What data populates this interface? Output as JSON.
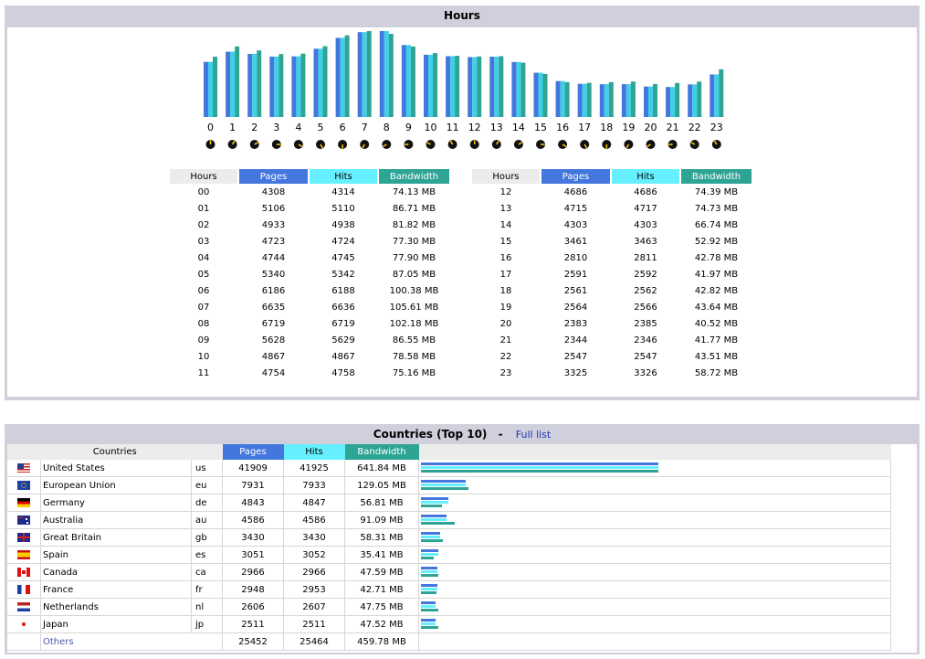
{
  "hours_panel": {
    "title": "Hours",
    "table_headers": {
      "hours": "Hours",
      "pages": "Pages",
      "hits": "Hits",
      "bandwidth": "Bandwidth"
    },
    "hours": [
      {
        "hour": "00",
        "label": "0",
        "pages": "4308",
        "hits": "4314",
        "bandwidth": "74.13 MB"
      },
      {
        "hour": "01",
        "label": "1",
        "pages": "5106",
        "hits": "5110",
        "bandwidth": "86.71 MB"
      },
      {
        "hour": "02",
        "label": "2",
        "pages": "4933",
        "hits": "4938",
        "bandwidth": "81.82 MB"
      },
      {
        "hour": "03",
        "label": "3",
        "pages": "4723",
        "hits": "4724",
        "bandwidth": "77.30 MB"
      },
      {
        "hour": "04",
        "label": "4",
        "pages": "4744",
        "hits": "4745",
        "bandwidth": "77.90 MB"
      },
      {
        "hour": "05",
        "label": "5",
        "pages": "5340",
        "hits": "5342",
        "bandwidth": "87.05 MB"
      },
      {
        "hour": "06",
        "label": "6",
        "pages": "6186",
        "hits": "6188",
        "bandwidth": "100.38 MB"
      },
      {
        "hour": "07",
        "label": "7",
        "pages": "6635",
        "hits": "6636",
        "bandwidth": "105.61 MB"
      },
      {
        "hour": "08",
        "label": "8",
        "pages": "6719",
        "hits": "6719",
        "bandwidth": "102.18 MB"
      },
      {
        "hour": "09",
        "label": "9",
        "pages": "5628",
        "hits": "5629",
        "bandwidth": "86.55 MB"
      },
      {
        "hour": "10",
        "label": "10",
        "pages": "4867",
        "hits": "4867",
        "bandwidth": "78.58 MB"
      },
      {
        "hour": "11",
        "label": "11",
        "pages": "4754",
        "hits": "4758",
        "bandwidth": "75.16 MB"
      },
      {
        "hour": "12",
        "label": "12",
        "pages": "4686",
        "hits": "4686",
        "bandwidth": "74.39 MB"
      },
      {
        "hour": "13",
        "label": "13",
        "pages": "4715",
        "hits": "4717",
        "bandwidth": "74.73 MB"
      },
      {
        "hour": "14",
        "label": "14",
        "pages": "4303",
        "hits": "4303",
        "bandwidth": "66.74 MB"
      },
      {
        "hour": "15",
        "label": "15",
        "pages": "3461",
        "hits": "3463",
        "bandwidth": "52.92 MB"
      },
      {
        "hour": "16",
        "label": "16",
        "pages": "2810",
        "hits": "2811",
        "bandwidth": "42.78 MB"
      },
      {
        "hour": "17",
        "label": "17",
        "pages": "2591",
        "hits": "2592",
        "bandwidth": "41.97 MB"
      },
      {
        "hour": "18",
        "label": "18",
        "pages": "2561",
        "hits": "2562",
        "bandwidth": "42.82 MB"
      },
      {
        "hour": "19",
        "label": "19",
        "pages": "2564",
        "hits": "2566",
        "bandwidth": "43.64 MB"
      },
      {
        "hour": "20",
        "label": "20",
        "pages": "2383",
        "hits": "2385",
        "bandwidth": "40.52 MB"
      },
      {
        "hour": "21",
        "label": "21",
        "pages": "2344",
        "hits": "2346",
        "bandwidth": "41.77 MB"
      },
      {
        "hour": "22",
        "label": "22",
        "pages": "2547",
        "hits": "2547",
        "bandwidth": "43.51 MB"
      },
      {
        "hour": "23",
        "label": "23",
        "pages": "3325",
        "hits": "3326",
        "bandwidth": "58.72 MB"
      }
    ]
  },
  "countries_panel": {
    "title": "Countries (Top 10)",
    "separator": "-",
    "full_list_link": "Full list",
    "headers": {
      "countries": "Countries",
      "pages": "Pages",
      "hits": "Hits",
      "bandwidth": "Bandwidth"
    },
    "rows": [
      {
        "flag": "us-flag-icon",
        "name": "United States",
        "code": "us",
        "pages": "41909",
        "hits": "41925",
        "bandwidth": "641.84 MB",
        "bw_mb": 641.84
      },
      {
        "flag": "eu-flag-icon",
        "name": "European Union",
        "code": "eu",
        "pages": "7931",
        "hits": "7933",
        "bandwidth": "129.05 MB",
        "bw_mb": 129.05
      },
      {
        "flag": "de-flag-icon",
        "name": "Germany",
        "code": "de",
        "pages": "4843",
        "hits": "4847",
        "bandwidth": "56.81 MB",
        "bw_mb": 56.81
      },
      {
        "flag": "au-flag-icon",
        "name": "Australia",
        "code": "au",
        "pages": "4586",
        "hits": "4586",
        "bandwidth": "91.09 MB",
        "bw_mb": 91.09
      },
      {
        "flag": "gb-flag-icon",
        "name": "Great Britain",
        "code": "gb",
        "pages": "3430",
        "hits": "3430",
        "bandwidth": "58.31 MB",
        "bw_mb": 58.31
      },
      {
        "flag": "es-flag-icon",
        "name": "Spain",
        "code": "es",
        "pages": "3051",
        "hits": "3052",
        "bandwidth": "35.41 MB",
        "bw_mb": 35.41
      },
      {
        "flag": "ca-flag-icon",
        "name": "Canada",
        "code": "ca",
        "pages": "2966",
        "hits": "2966",
        "bandwidth": "47.59 MB",
        "bw_mb": 47.59
      },
      {
        "flag": "fr-flag-icon",
        "name": "France",
        "code": "fr",
        "pages": "2948",
        "hits": "2953",
        "bandwidth": "42.71 MB",
        "bw_mb": 42.71
      },
      {
        "flag": "nl-flag-icon",
        "name": "Netherlands",
        "code": "nl",
        "pages": "2606",
        "hits": "2607",
        "bandwidth": "47.75 MB",
        "bw_mb": 47.75
      },
      {
        "flag": "jp-flag-icon",
        "name": "Japan",
        "code": "jp",
        "pages": "2511",
        "hits": "2511",
        "bandwidth": "47.52 MB",
        "bw_mb": 47.52
      }
    ],
    "others": {
      "name": "Others",
      "pages": "25452",
      "hits": "25464",
      "bandwidth": "459.78 MB"
    }
  },
  "colors": {
    "pages": "#4477dd",
    "hits": "#66f0ff",
    "bandwidth": "#2ea495",
    "header_bg": "#d0d0dc",
    "link": "#2233bb"
  },
  "chart_data": {
    "type": "bar",
    "title": "Hours",
    "categories": [
      "0",
      "1",
      "2",
      "3",
      "4",
      "5",
      "6",
      "7",
      "8",
      "9",
      "10",
      "11",
      "12",
      "13",
      "14",
      "15",
      "16",
      "17",
      "18",
      "19",
      "20",
      "21",
      "22",
      "23"
    ],
    "series": [
      {
        "name": "Pages",
        "values": [
          4308,
          5106,
          4933,
          4723,
          4744,
          5340,
          6186,
          6635,
          6719,
          5628,
          4867,
          4754,
          4686,
          4715,
          4303,
          3461,
          2810,
          2591,
          2561,
          2564,
          2383,
          2344,
          2547,
          3325
        ]
      },
      {
        "name": "Hits",
        "values": [
          4314,
          5110,
          4938,
          4724,
          4745,
          5342,
          6188,
          6636,
          6719,
          5629,
          4867,
          4758,
          4686,
          4717,
          4303,
          3463,
          2811,
          2592,
          2562,
          2566,
          2385,
          2346,
          2547,
          3326
        ]
      },
      {
        "name": "Bandwidth (MB)",
        "values": [
          74.13,
          86.71,
          81.82,
          77.3,
          77.9,
          87.05,
          100.38,
          105.61,
          102.18,
          86.55,
          78.58,
          75.16,
          74.39,
          74.73,
          66.74,
          52.92,
          42.78,
          41.97,
          42.82,
          43.64,
          40.52,
          41.77,
          43.51,
          58.72
        ]
      }
    ],
    "xlabel": "",
    "ylabel": ""
  }
}
